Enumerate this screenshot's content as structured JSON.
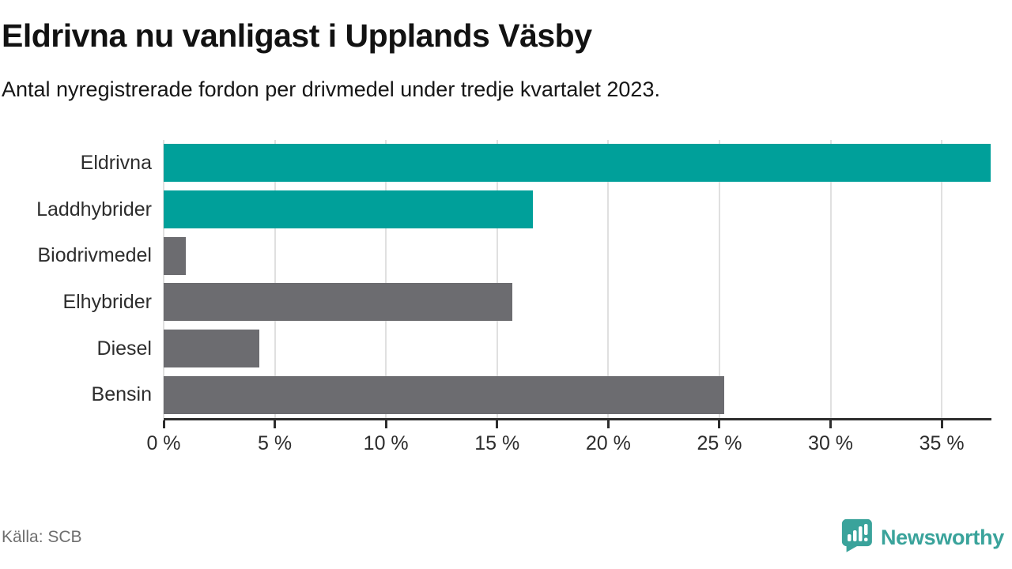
{
  "header": {
    "title": "Eldrivna nu vanligast i Upplands Väsby",
    "subtitle": "Antal nyregistrerade fordon per drivmedel under tredje kvartalet 2023."
  },
  "footer": {
    "source": "Källa: SCB",
    "brand_name": "Newsworthy"
  },
  "colors": {
    "highlight_teal": "#00a09a",
    "neutral_gray": "#6c6c70",
    "axis": "#2d2d2d",
    "gridline": "#e0e0e0",
    "brand_teal": "#3aa39b",
    "source_text": "#6e6e6e"
  },
  "chart_data": {
    "type": "bar",
    "orientation": "horizontal",
    "title": "Eldrivna nu vanligast i Upplands Väsby",
    "subtitle": "Antal nyregistrerade fordon per drivmedel under tredje kvartalet 2023.",
    "categories": [
      "Eldrivna",
      "Laddhybrider",
      "Biodrivmedel",
      "Elhybrider",
      "Diesel",
      "Bensin"
    ],
    "values": [
      37.2,
      16.6,
      1.0,
      15.7,
      4.3,
      25.2
    ],
    "bar_colors": [
      "#00a09a",
      "#00a09a",
      "#6c6c70",
      "#6c6c70",
      "#6c6c70",
      "#6c6c70"
    ],
    "xlabel": "",
    "ylabel": "",
    "xlim": [
      0,
      37.2
    ],
    "xticks": [
      0,
      5,
      10,
      15,
      20,
      25,
      30,
      35
    ],
    "xtick_labels": [
      "0 %",
      "5 %",
      "10 %",
      "15 %",
      "20 %",
      "25 %",
      "30 %",
      "35 %"
    ],
    "grid": "vertical",
    "legend": "none"
  }
}
